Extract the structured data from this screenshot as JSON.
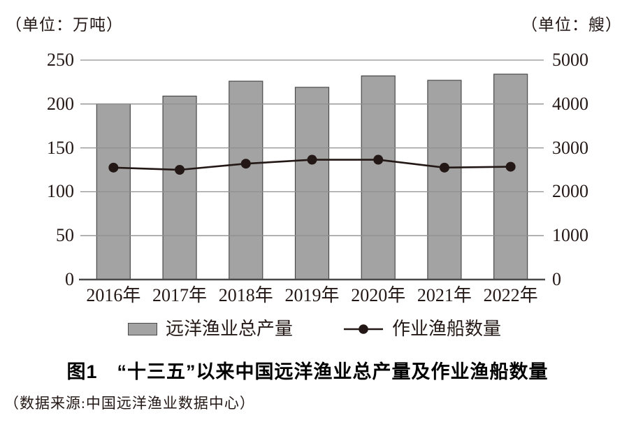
{
  "units": {
    "left": "（单位：万吨）",
    "right": "（单位：艘）"
  },
  "chart_data": {
    "type": "bar",
    "subtype": "bar-and-line-combo",
    "categories": [
      "2016年",
      "2017年",
      "2018年",
      "2019年",
      "2020年",
      "2021年",
      "2022年"
    ],
    "series": [
      {
        "name": "远洋渔业总产量",
        "type": "bar",
        "axis": "left",
        "values": [
          200,
          209,
          226,
          219,
          232,
          227,
          234
        ]
      },
      {
        "name": "作业渔船数量",
        "type": "line",
        "axis": "right",
        "values": [
          2550,
          2500,
          2640,
          2730,
          2730,
          2550,
          2570
        ]
      }
    ],
    "left_axis": {
      "unit": "万吨",
      "ticks": [
        0,
        50,
        100,
        150,
        200,
        250
      ],
      "range": [
        0,
        250
      ]
    },
    "right_axis": {
      "unit": "艘",
      "ticks": [
        0,
        1000,
        2000,
        3000,
        4000,
        5000
      ],
      "range": [
        0,
        5000
      ]
    },
    "grid": true,
    "legend_position": "bottom",
    "title": "图1　“十三五”以来中国远洋渔业总产量及作业渔船数量"
  },
  "legend": {
    "bar_label": "远洋渔业总产量",
    "line_label": "作业渔船数量"
  },
  "caption": "图1　“十三五”以来中国远洋渔业总产量及作业渔船数量",
  "source": "（数据来源:中国远洋渔业数据中心）",
  "colors": {
    "bar_fill": "#a3a3a3",
    "bar_border": "#4a4a4a",
    "gridline": "#8f8f8f",
    "axis_line": "#4a4a4a",
    "line_series": "#231815",
    "text": "#231815"
  }
}
